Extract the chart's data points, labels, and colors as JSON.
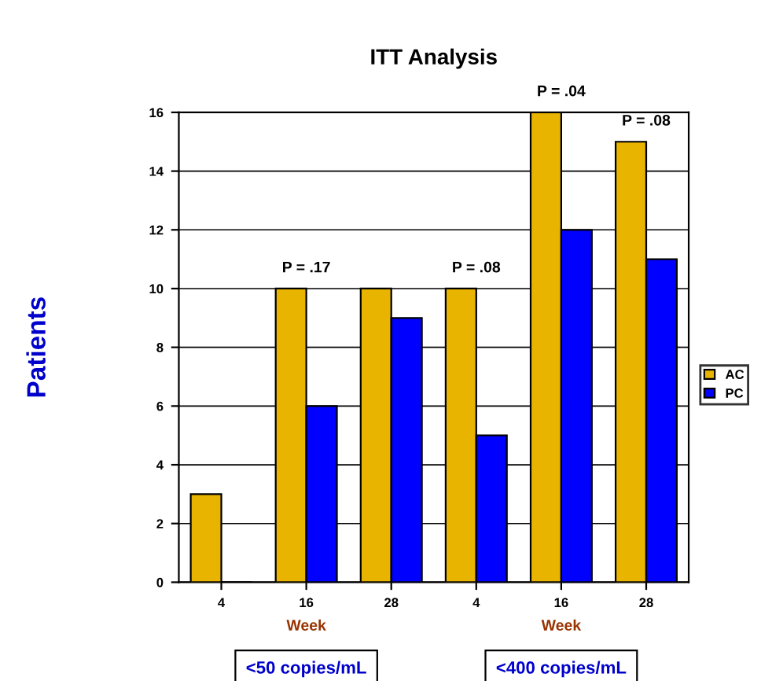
{
  "chart_data": {
    "type": "bar",
    "title": "ITT Analysis",
    "ylabel": "Patients",
    "categories": [
      "4",
      "16",
      "28",
      "4",
      "16",
      "28"
    ],
    "series": [
      {
        "name": "AC",
        "color": "#e8b400",
        "values": [
          3,
          10,
          10,
          10,
          16,
          15
        ]
      },
      {
        "name": "PC",
        "color": "#0000ff",
        "values": [
          0,
          6,
          9,
          5,
          12,
          11
        ]
      }
    ],
    "ylim": [
      0,
      16
    ],
    "yticks": [
      0,
      2,
      4,
      6,
      8,
      10,
      12,
      14,
      16
    ],
    "grid": "y",
    "legend": "right",
    "annotations": [
      "P = .17",
      "P = .08",
      "P = .04",
      "P = .08",
      "Week",
      "Week",
      "<50 copies/mL",
      "<400 copies/mL"
    ]
  }
}
